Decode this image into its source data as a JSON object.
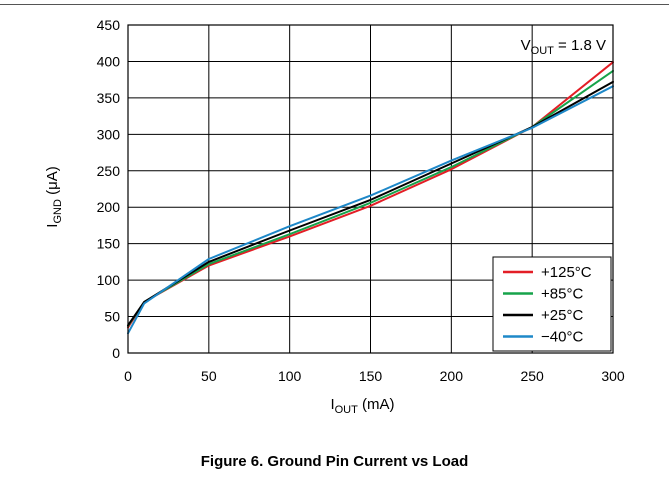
{
  "figure_caption": "Figure 6. Ground Pin Current vs Load",
  "chart_data": {
    "type": "line",
    "title": "",
    "xlabel": {
      "main": "I",
      "sub": "OUT",
      "unit": " (mA)"
    },
    "ylabel": {
      "main": "I",
      "sub": "GND",
      "unit": " (μA)"
    },
    "xlim": [
      0,
      300
    ],
    "ylim": [
      0,
      450
    ],
    "xticks": [
      0,
      50,
      100,
      150,
      200,
      250,
      300
    ],
    "yticks": [
      0,
      50,
      100,
      150,
      200,
      250,
      300,
      350,
      400,
      450
    ],
    "grid": true,
    "legend_position": "bottom-right",
    "annotation": {
      "main": "V",
      "sub": "OUT",
      "rest": " = 1.8 V",
      "position": "top-right"
    },
    "series": [
      {
        "name": "+125°C",
        "color": "#e31e26",
        "x": [
          0,
          10,
          50,
          100,
          150,
          200,
          250,
          300
        ],
        "y": [
          35,
          70,
          120,
          160,
          202,
          252,
          310,
          399
        ]
      },
      {
        "name": "+85°C",
        "color": "#16a34a",
        "x": [
          0,
          10,
          50,
          100,
          150,
          200,
          250,
          300
        ],
        "y": [
          37,
          70,
          122,
          163,
          206,
          255,
          310,
          387
        ]
      },
      {
        "name": "+25°C",
        "color": "#000000",
        "x": [
          0,
          10,
          50,
          100,
          150,
          200,
          250,
          300
        ],
        "y": [
          38,
          70,
          125,
          168,
          210,
          260,
          310,
          372
        ]
      },
      {
        "name": "−40°C",
        "color": "#1e88c8",
        "x": [
          0,
          10,
          50,
          100,
          150,
          200,
          250,
          300
        ],
        "y": [
          27,
          68,
          129,
          174,
          216,
          264,
          309,
          366
        ]
      }
    ]
  }
}
